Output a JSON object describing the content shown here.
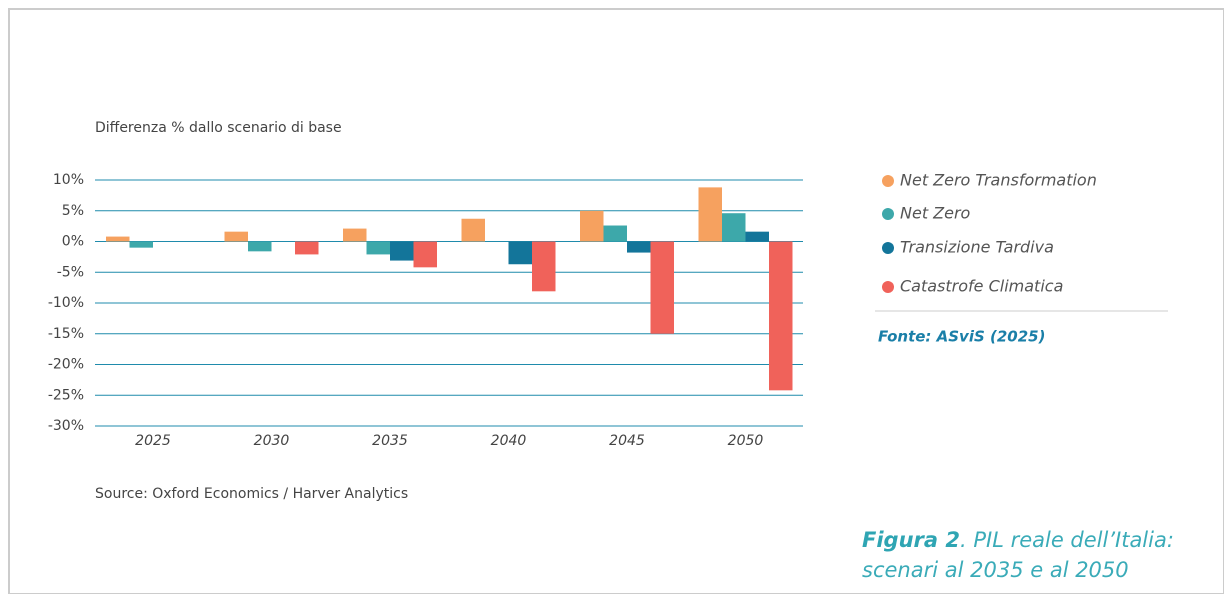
{
  "chart_data": {
    "type": "bar",
    "axis_label": "Differenza % dallo scenario di base",
    "categories": [
      "2025",
      "2030",
      "2035",
      "2040",
      "2045",
      "2050"
    ],
    "series": [
      {
        "name": "Net Zero Transformation",
        "color": "#f6a15f",
        "values": [
          0.8,
          1.6,
          2.1,
          3.7,
          5.0,
          8.8
        ]
      },
      {
        "name": "Net Zero",
        "color": "#3da8aa",
        "values": [
          -1.0,
          -1.6,
          -2.1,
          null,
          2.6,
          4.6
        ]
      },
      {
        "name": "Transizione Tardiva",
        "color": "#13759a",
        "values": [
          null,
          null,
          -3.1,
          -3.7,
          -1.8,
          1.6
        ]
      },
      {
        "name": "Catastrofe Climatica",
        "color": "#f0625a",
        "values": [
          null,
          -2.1,
          -4.2,
          -8.1,
          -15.0,
          -24.2
        ]
      }
    ],
    "ylim": [
      -30,
      10
    ],
    "yticks": [
      {
        "value": -30,
        "label": "-30%"
      },
      {
        "value": -25,
        "label": "-25%"
      },
      {
        "value": -20,
        "label": "-20%"
      },
      {
        "value": -15,
        "label": "-15%"
      },
      {
        "value": -10,
        "label": "-10%"
      },
      {
        "value": -5,
        "label": "-5%"
      },
      {
        "value": 0,
        "label": "0%"
      },
      {
        "value": 5,
        "label": "5%"
      },
      {
        "value": 10,
        "label": "10%"
      }
    ],
    "grid": true,
    "legend": "right",
    "fonte": "Fonte: ASviS (2025)",
    "source": "Source: Oxford Economics / Harver Analytics",
    "figure_label": "Figura 2",
    "figure_title_line1": ". PIL reale dell’Italia:",
    "figure_title_line2": "scenari al 2035 e al 2050"
  }
}
